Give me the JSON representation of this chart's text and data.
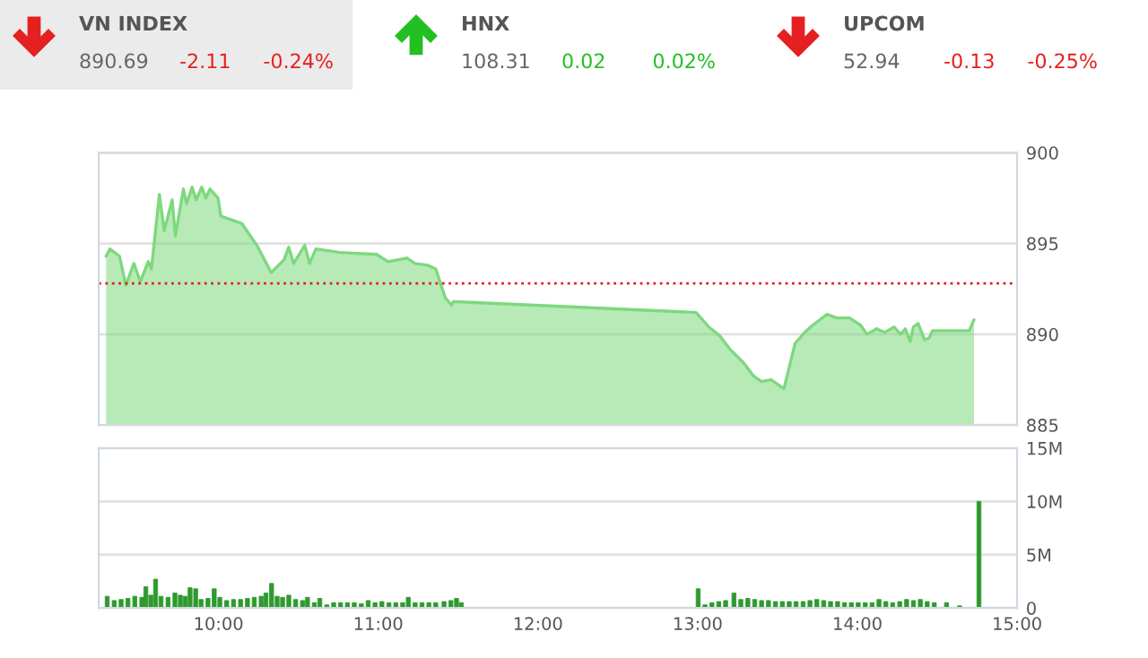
{
  "chart_data": [
    {
      "type": "other",
      "annotations": [
        "VN INDEX",
        "890.69",
        "-2.11",
        "-0.24%",
        "HNX",
        "108.31",
        "0.02",
        "0.02%",
        "UPCOM",
        "52.94",
        "-0.13",
        "-0.25%"
      ]
    },
    {
      "type": "area",
      "xlim": [
        9.25,
        15
      ],
      "ylim": [
        885,
        900
      ],
      "yticks": [
        885,
        890,
        895,
        900
      ],
      "grid": "y",
      "tick_labels": "y",
      "ref_lines": [
        {
          "axis": "y",
          "value": 892.8,
          "color": "#e02020",
          "line_style": "dotted"
        }
      ],
      "series": [
        {
          "color": "#7ed87e",
          "x": [
            9.296,
            9.32,
            9.38,
            9.42,
            9.47,
            9.51,
            9.56,
            9.58,
            9.63,
            9.66,
            9.71,
            9.73,
            9.78,
            9.8,
            9.835,
            9.86,
            9.895,
            9.92,
            9.947,
            9.997,
            10.015,
            10.146,
            10.24,
            10.33,
            10.41,
            10.44,
            10.47,
            10.54,
            10.57,
            10.61,
            10.76,
            10.99,
            11.06,
            11.18,
            11.23,
            11.31,
            11.36,
            11.42,
            11.46,
            11.47,
            12.99,
            13.07,
            13.14,
            13.2,
            13.29,
            13.35,
            13.4,
            13.46,
            13.54,
            13.61,
            13.67,
            13.72,
            13.81,
            13.87,
            13.95,
            14.02,
            14.06,
            14.12,
            14.17,
            14.23,
            14.27,
            14.3,
            14.33,
            14.35,
            14.38,
            14.42,
            14.45,
            14.47,
            14.7,
            14.73
          ],
          "values": [
            894.3,
            894.7,
            894.3,
            892.7,
            893.9,
            892.9,
            894.0,
            893.6,
            897.7,
            895.7,
            897.4,
            895.4,
            898.0,
            897.2,
            898.1,
            897.4,
            898.1,
            897.5,
            898.0,
            897.5,
            896.5,
            896.1,
            894.9,
            893.4,
            894.1,
            894.8,
            893.9,
            894.9,
            893.9,
            894.7,
            894.5,
            894.4,
            894.0,
            894.2,
            893.9,
            893.8,
            893.6,
            892.0,
            891.6,
            891.8,
            891.2,
            890.4,
            889.9,
            889.2,
            888.4,
            887.7,
            887.4,
            887.5,
            887.0,
            889.5,
            890.1,
            890.5,
            891.1,
            890.9,
            890.9,
            890.5,
            890.0,
            890.3,
            890.1,
            890.4,
            890.0,
            890.3,
            889.6,
            890.4,
            890.6,
            889.7,
            889.8,
            890.2,
            890.2,
            890.8
          ]
        }
      ]
    },
    {
      "type": "bar",
      "xlim": [
        9.25,
        15
      ],
      "ylim": [
        0,
        15
      ],
      "grid": "y",
      "xticks": [
        {
          "value": 10,
          "label": "10:00"
        },
        {
          "value": 11,
          "label": "11:00"
        },
        {
          "value": 12,
          "label": "12:00"
        },
        {
          "value": 13,
          "label": "13:00"
        },
        {
          "value": 14,
          "label": "14:00"
        },
        {
          "value": 15,
          "label": "15:00"
        }
      ],
      "yticks": [
        0,
        {
          "value": 5,
          "label": "5M"
        },
        {
          "value": 10,
          "label": "10M"
        },
        {
          "value": 15,
          "label": "15M"
        }
      ],
      "series": [
        {
          "color": "#2e9a2e",
          "x": [
            9.303,
            9.347,
            9.39,
            9.433,
            9.476,
            9.52,
            9.545,
            9.576,
            9.606,
            9.64,
            9.684,
            9.727,
            9.761,
            9.792,
            9.822,
            9.857,
            9.891,
            9.934,
            9.973,
            10.008,
            10.051,
            10.094,
            10.138,
            10.181,
            10.224,
            10.267,
            10.297,
            10.332,
            10.367,
            10.401,
            10.44,
            10.483,
            10.526,
            10.557,
            10.6,
            10.634,
            10.678,
            10.721,
            10.764,
            10.807,
            10.85,
            10.894,
            10.937,
            10.98,
            11.023,
            11.067,
            11.11,
            11.153,
            11.188,
            11.231,
            11.274,
            11.317,
            11.36,
            11.412,
            11.455,
            11.49,
            11.52,
            13.003,
            13.046,
            13.089,
            13.132,
            13.175,
            13.227,
            13.27,
            13.314,
            13.357,
            13.4,
            13.443,
            13.487,
            13.53,
            13.573,
            13.616,
            13.66,
            13.703,
            13.746,
            13.789,
            13.832,
            13.876,
            13.919,
            13.962,
            14.005,
            14.049,
            14.092,
            14.135,
            14.178,
            14.221,
            14.265,
            14.308,
            14.351,
            14.394,
            14.437,
            14.481,
            14.558,
            14.64,
            14.761
          ],
          "values": [
            1.1,
            0.7,
            0.8,
            0.9,
            1.1,
            1.0,
            2.0,
            1.2,
            2.7,
            1.1,
            1.0,
            1.4,
            1.2,
            1.1,
            1.9,
            1.8,
            0.8,
            0.9,
            1.8,
            1.0,
            0.7,
            0.8,
            0.8,
            0.9,
            1.0,
            1.1,
            1.4,
            2.3,
            1.1,
            1.0,
            1.2,
            0.8,
            0.7,
            1.0,
            0.5,
            0.9,
            0.3,
            0.5,
            0.5,
            0.5,
            0.5,
            0.4,
            0.7,
            0.5,
            0.6,
            0.5,
            0.5,
            0.5,
            1.0,
            0.5,
            0.5,
            0.5,
            0.5,
            0.6,
            0.7,
            0.9,
            0.5,
            1.8,
            0.3,
            0.5,
            0.6,
            0.7,
            1.4,
            0.8,
            0.9,
            0.8,
            0.7,
            0.7,
            0.6,
            0.6,
            0.6,
            0.6,
            0.6,
            0.7,
            0.8,
            0.7,
            0.6,
            0.6,
            0.5,
            0.5,
            0.5,
            0.5,
            0.5,
            0.8,
            0.6,
            0.5,
            0.6,
            0.8,
            0.7,
            0.8,
            0.6,
            0.5,
            0.5,
            0.2,
            10.0
          ]
        }
      ]
    }
  ]
}
